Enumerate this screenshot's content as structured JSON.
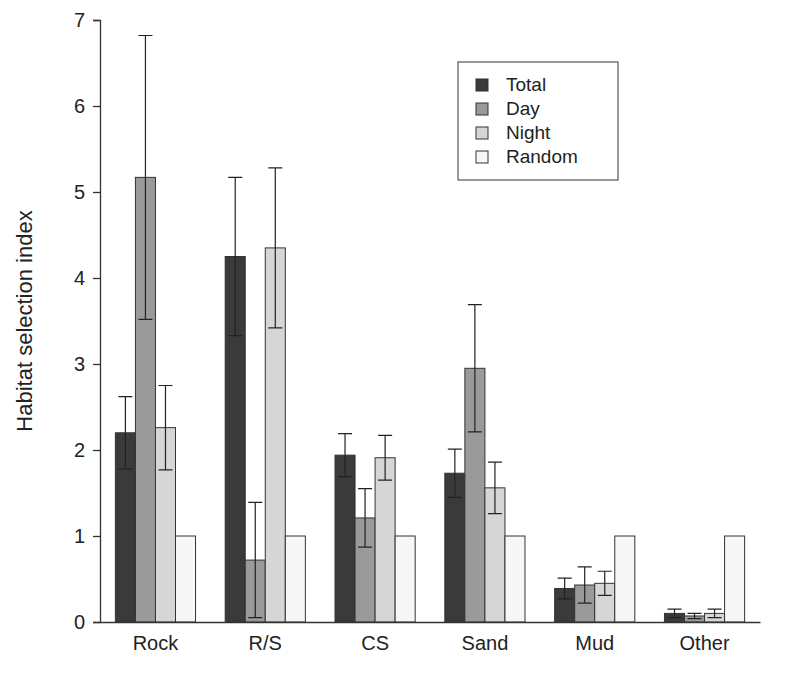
{
  "chart_data": {
    "type": "bar",
    "y_label": "Habitat selection index",
    "categories": [
      "Rock",
      "R/S",
      "CS",
      "Sand",
      "Mud",
      "Other"
    ],
    "series": [
      {
        "name": "Total",
        "color": "#3a3a3a",
        "values": [
          2.2,
          4.25,
          1.94,
          1.73,
          0.39,
          0.1
        ],
        "errors": [
          0.42,
          0.92,
          0.25,
          0.28,
          0.12,
          0.05
        ]
      },
      {
        "name": "Day",
        "color": "#9a9a9a",
        "values": [
          5.17,
          0.72,
          1.21,
          2.95,
          0.43,
          0.07
        ],
        "errors": [
          1.65,
          0.67,
          0.34,
          0.74,
          0.21,
          0.03
        ]
      },
      {
        "name": "Night",
        "color": "#d6d6d6",
        "values": [
          2.26,
          4.35,
          1.91,
          1.56,
          0.45,
          0.1
        ],
        "errors": [
          0.49,
          0.93,
          0.26,
          0.3,
          0.14,
          0.05
        ]
      },
      {
        "name": "Random",
        "color": "#f7f7f7",
        "values": [
          1,
          1,
          1,
          1,
          1,
          1
        ]
      }
    ],
    "ylim": [
      0,
      7
    ],
    "yticks": [
      0,
      1,
      2,
      3,
      4,
      5,
      6,
      7
    ],
    "legend": "upper right"
  }
}
